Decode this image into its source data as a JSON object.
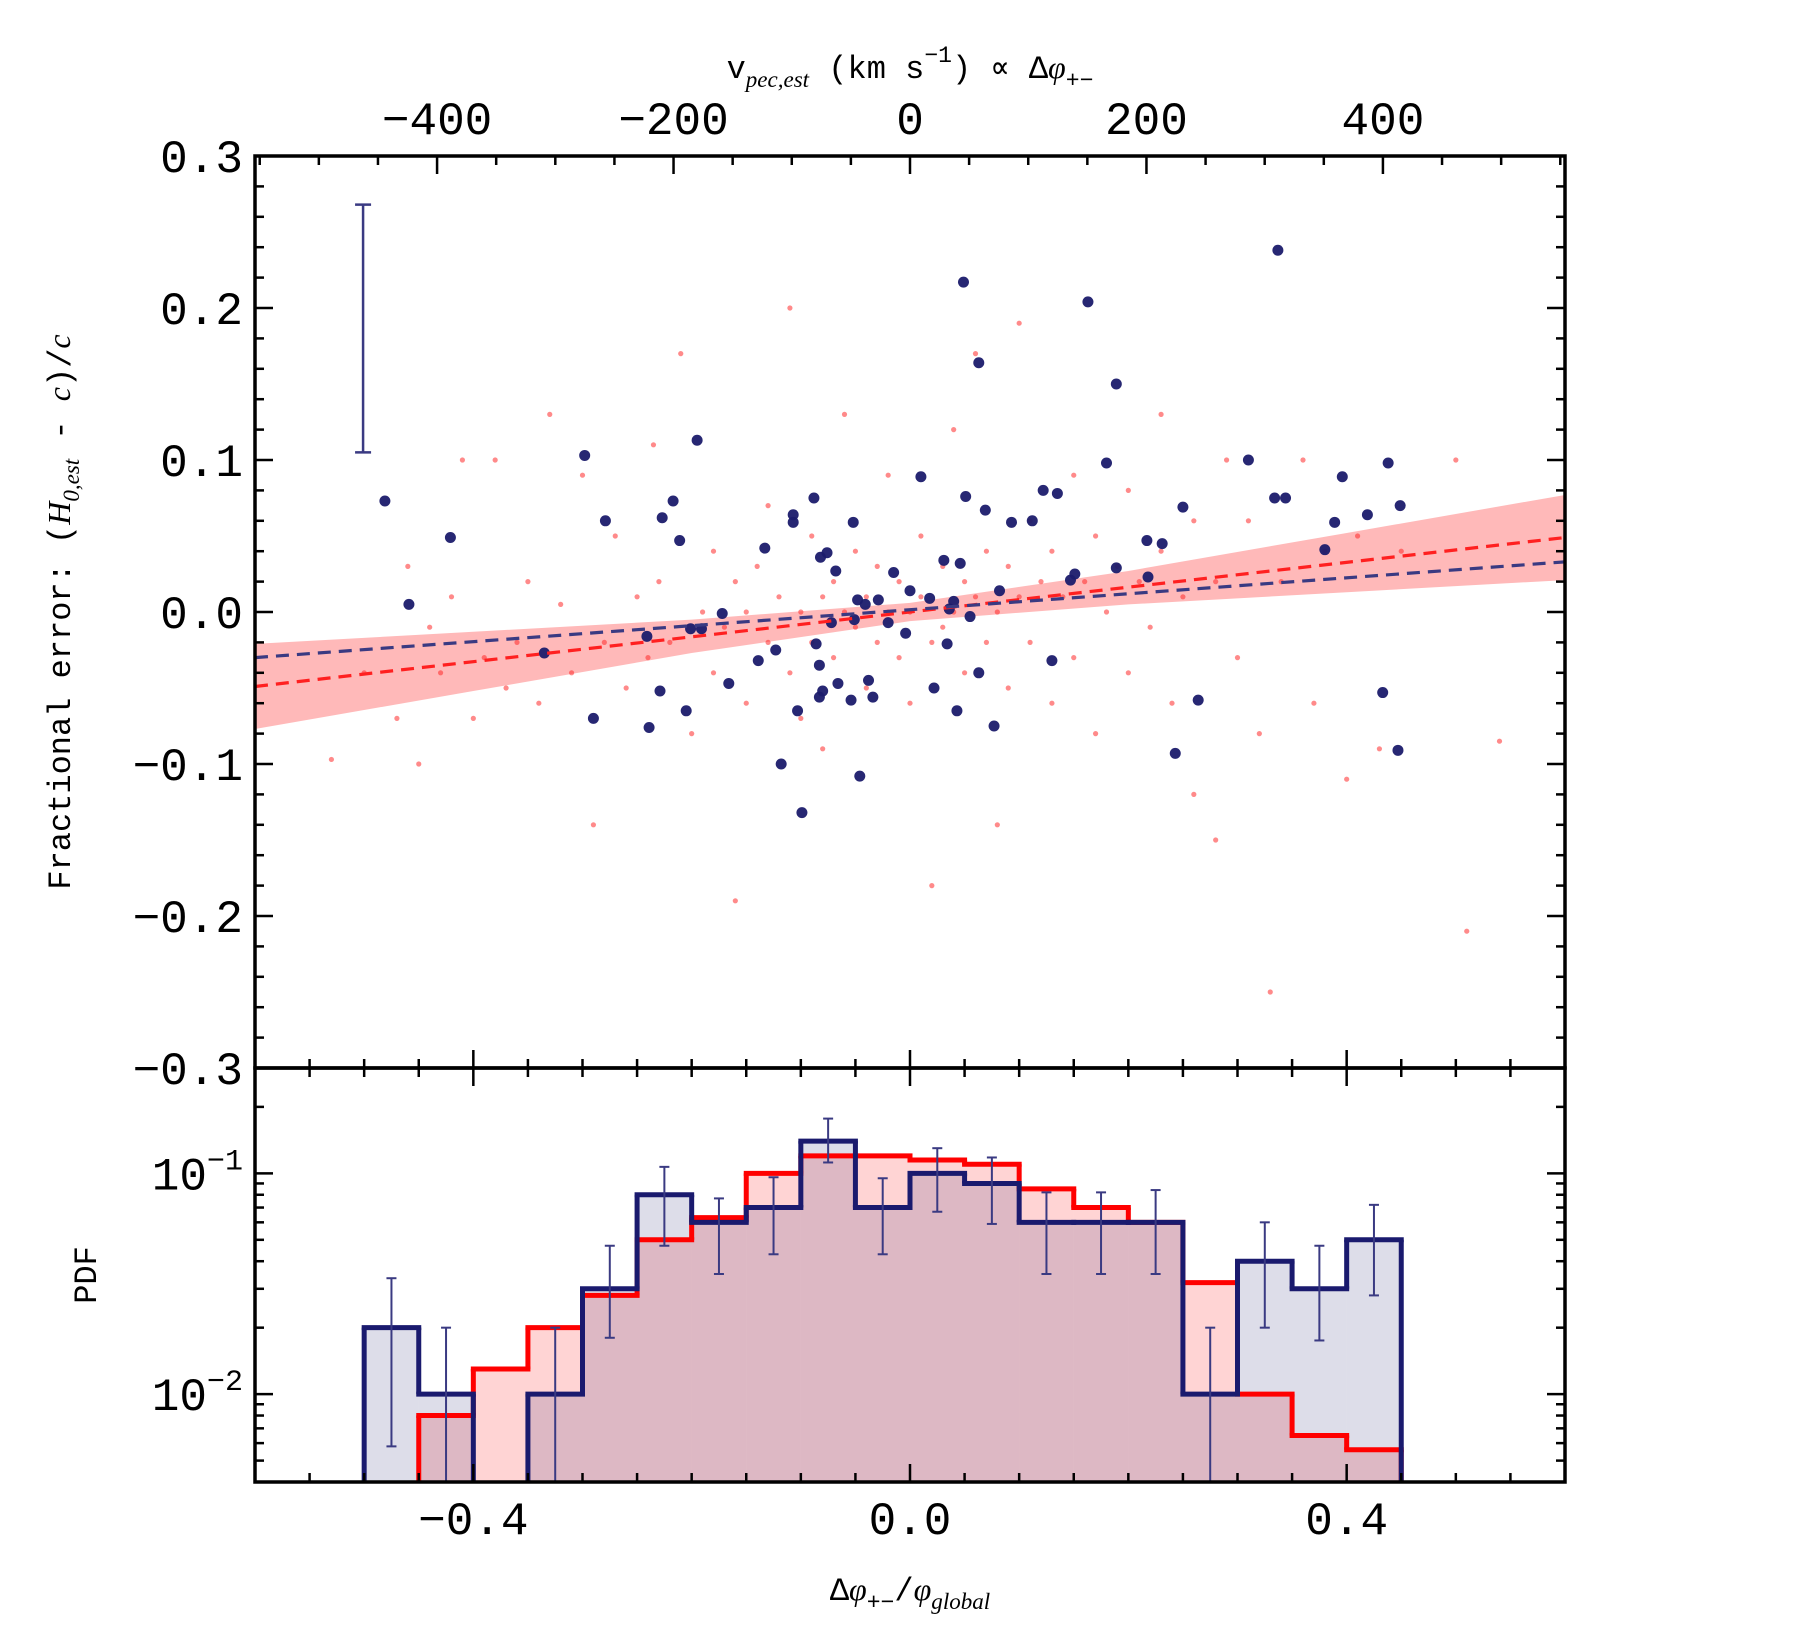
{
  "chart_data": [
    {
      "type": "scatter",
      "xlim": [
        -0.6,
        0.6
      ],
      "ylim": [
        -0.3,
        0.3
      ],
      "yticks": [
        {
          "value": -0.3,
          "label": "−0.3"
        },
        {
          "value": -0.2,
          "label": "−0.2"
        },
        {
          "value": -0.1,
          "label": "−0.1"
        },
        {
          "value": 0,
          "label": "0.0"
        },
        0.1,
        0.2,
        0.3
      ],
      "x2lim": [
        -554,
        554
      ],
      "x2ticks": [
        {
          "value": -400,
          "label": "−400"
        },
        {
          "value": -200,
          "label": "−200"
        },
        0,
        200,
        400
      ],
      "x2label": [
        {
          "text": "v"
        },
        {
          "text": "pec,est",
          "sub": true,
          "italic": true
        },
        {
          "text": " (km s"
        },
        {
          "text": "−1",
          "sup": true
        },
        {
          "text": ") ∝ Δ"
        },
        {
          "text": "φ",
          "italic": true
        },
        {
          "text": "+−",
          "sub": true
        }
      ],
      "ylabel": [
        {
          "text": "Fractional error: ("
        },
        {
          "text": "H",
          "italic": true
        },
        {
          "text": "0,est",
          "sub": true,
          "italic": true
        },
        {
          "text": " - "
        },
        {
          "text": "c",
          "italic": true
        },
        {
          "text": ")/"
        },
        {
          "text": "c",
          "italic": true
        }
      ],
      "band": {
        "color": "#ff8080",
        "opacity": 0.55,
        "x": [
          -0.6,
          -0.4,
          -0.2,
          0,
          0.2,
          0.4,
          0.6
        ],
        "low": [
          -0.077,
          -0.052,
          -0.027,
          -0.006,
          0.005,
          0.013,
          0.021
        ],
        "high": [
          -0.021,
          -0.013,
          -0.005,
          0.006,
          0.027,
          0.052,
          0.077
        ]
      },
      "series": [
        {
          "color": "#ff2a2a",
          "radius": 2.6,
          "opacity": 0.55,
          "x": [
            -0.53,
            -0.5,
            -0.47,
            -0.46,
            -0.45,
            -0.44,
            -0.43,
            -0.42,
            -0.41,
            -0.4,
            -0.39,
            -0.38,
            -0.37,
            -0.36,
            -0.35,
            -0.34,
            -0.33,
            -0.32,
            -0.31,
            -0.3,
            -0.29,
            -0.28,
            -0.27,
            -0.26,
            -0.25,
            -0.24,
            -0.235,
            -0.23,
            -0.22,
            -0.21,
            -0.2,
            -0.19,
            -0.18,
            -0.18,
            -0.17,
            -0.16,
            -0.16,
            -0.15,
            -0.15,
            -0.14,
            -0.13,
            -0.13,
            -0.12,
            -0.11,
            -0.11,
            -0.1,
            -0.1,
            -0.09,
            -0.09,
            -0.08,
            -0.08,
            -0.07,
            -0.07,
            -0.06,
            -0.06,
            -0.05,
            -0.05,
            -0.04,
            -0.04,
            -0.03,
            -0.03,
            -0.02,
            -0.02,
            -0.01,
            -0.01,
            0,
            0,
            0.01,
            0.01,
            0.02,
            0.02,
            0.03,
            0.03,
            0.04,
            0.04,
            0.05,
            0.05,
            0.06,
            0.06,
            0.07,
            0.07,
            0.08,
            0.08,
            0.09,
            0.09,
            0.1,
            0.1,
            0.11,
            0.11,
            0.12,
            0.13,
            0.13,
            0.14,
            0.15,
            0.15,
            0.16,
            0.17,
            0.17,
            0.18,
            0.19,
            0.2,
            0.2,
            0.21,
            0.22,
            0.23,
            0.23,
            0.24,
            0.25,
            0.26,
            0.26,
            0.28,
            0.28,
            0.29,
            0.3,
            0.31,
            0.32,
            0.33,
            0.34,
            0.36,
            0.37,
            0.38,
            0.4,
            0.41,
            0.43,
            0.45,
            0.5,
            0.51,
            0.54
          ],
          "values": [
            -0.097,
            -0.04,
            -0.07,
            0.03,
            -0.1,
            -0.01,
            -0.04,
            0.01,
            0.1,
            -0.07,
            -0.03,
            0.1,
            -0.05,
            -0.02,
            0.02,
            -0.06,
            0.13,
            0.005,
            -0.04,
            0.09,
            -0.14,
            -0.02,
            0.05,
            -0.05,
            0.01,
            -0.03,
            0.11,
            0.02,
            -0.02,
            0.17,
            -0.08,
            0,
            -0.04,
            0.04,
            -0.01,
            0.02,
            -0.19,
            -0.06,
            0,
            0.03,
            -0.02,
            0.07,
            0.01,
            -0.04,
            0.2,
            0,
            -0.07,
            0.05,
            -0.02,
            0.01,
            -0.09,
            0.02,
            -0.03,
            0,
            0.13,
            -0.01,
            0.04,
            0.01,
            -0.05,
            -0.02,
            0.03,
            0,
            0.09,
            -0.03,
            0.02,
            0,
            -0.06,
            0.01,
            0.05,
            -0.02,
            -0.18,
            0.03,
            -0.01,
            0,
            0.12,
            -0.04,
            0.02,
            0.01,
            0.17,
            -0.02,
            0.04,
            0,
            -0.14,
            0.03,
            -0.05,
            0.01,
            0.19,
            0.06,
            -0.02,
            0.02,
            -0.06,
            0.04,
            0.01,
            0.09,
            -0.03,
            0.02,
            0.05,
            -0.08,
            0,
            0.03,
            -0.04,
            0.08,
            0.02,
            -0.01,
            0.13,
            0.04,
            -0.06,
            0.01,
            0.06,
            -0.12,
            0.02,
            -0.15,
            0.1,
            -0.03,
            0.06,
            -0.08,
            -0.25,
            0.02,
            0.1,
            -0.06,
            0.04,
            -0.11,
            0.05,
            -0.09,
            0.04,
            0.1,
            -0.21,
            -0.085
          ]
        },
        {
          "color": "#1b1b6b",
          "radius": 5.5,
          "opacity": 0.95,
          "x": [
            -0.481,
            -0.459,
            -0.421,
            -0.335,
            -0.298,
            -0.29,
            -0.279,
            -0.239,
            -0.241,
            -0.229,
            -0.227,
            -0.217,
            -0.211,
            -0.205,
            -0.201,
            -0.195,
            -0.191,
            -0.172,
            -0.166,
            -0.139,
            -0.133,
            -0.123,
            -0.118,
            -0.107,
            -0.107,
            -0.103,
            -0.099,
            -0.088,
            -0.086,
            -0.083,
            -0.083,
            -0.08,
            -0.082,
            -0.076,
            -0.068,
            -0.072,
            -0.066,
            -0.054,
            -0.052,
            -0.051,
            -0.048,
            -0.046,
            -0.041,
            -0.038,
            -0.034,
            -0.029,
            -0.02,
            -0.015,
            -0.004,
            0,
            0.01,
            0.018,
            0.022,
            0.031,
            0.034,
            0.036,
            0.04,
            0.043,
            0.046,
            0.049,
            0.051,
            0.055,
            0.063,
            0.063,
            0.069,
            0.077,
            0.082,
            0.093,
            0.112,
            0.122,
            0.13,
            0.135,
            0.147,
            0.151,
            0.163,
            0.18,
            0.189,
            0.189,
            0.217,
            0.218,
            0.231,
            0.243,
            0.25,
            0.264,
            0.31,
            0.337,
            0.334,
            0.344,
            0.38,
            0.389,
            0.396,
            0.419,
            0.433,
            0.438,
            0.447,
            0.449
          ],
          "values": [
            0.073,
            0.005,
            0.049,
            -0.027,
            0.103,
            -0.07,
            0.06,
            -0.076,
            -0.016,
            -0.052,
            0.062,
            0.073,
            0.047,
            -0.065,
            -0.011,
            0.113,
            -0.011,
            -0.001,
            -0.047,
            -0.032,
            0.042,
            -0.025,
            -0.1,
            0.064,
            0.059,
            -0.065,
            -0.132,
            0.075,
            -0.021,
            -0.035,
            -0.056,
            -0.052,
            0.036,
            0.039,
            0.027,
            -0.007,
            -0.047,
            -0.058,
            0.059,
            -0.005,
            0.008,
            -0.108,
            0.005,
            -0.045,
            -0.056,
            0.008,
            -0.007,
            0.026,
            -0.014,
            0.014,
            0.089,
            0.009,
            -0.05,
            0.034,
            -0.021,
            0.002,
            0.007,
            -0.065,
            0.032,
            0.217,
            0.076,
            -0.003,
            0.164,
            -0.04,
            0.067,
            -0.075,
            0.014,
            0.059,
            0.06,
            0.08,
            -0.032,
            0.078,
            0.021,
            0.025,
            0.204,
            0.098,
            0.15,
            0.029,
            0.047,
            0.023,
            0.045,
            -0.093,
            0.069,
            -0.058,
            0.1,
            0.238,
            0.075,
            0.075,
            0.041,
            0.059,
            0.089,
            0.064,
            -0.053,
            0.098,
            -0.091,
            0.07
          ]
        }
      ],
      "fits": [
        {
          "color": "#ff2020",
          "x": [
            -0.6,
            0.6
          ],
          "values": [
            -0.049,
            0.049
          ]
        },
        {
          "color": "#3a3a82",
          "x": [
            -0.6,
            0.6
          ],
          "values": [
            -0.03,
            0.033
          ]
        }
      ],
      "error_bar": {
        "color": "#3a3a82",
        "x": -0.501,
        "low": 0.105,
        "high": 0.268
      }
    },
    {
      "type": "histogram",
      "xlim": [
        -0.6,
        0.6
      ],
      "xticks": [
        {
          "value": -0.4,
          "label": "−0.4"
        },
        {
          "value": 0,
          "label": "0.0"
        },
        0.4
      ],
      "xlabel": [
        {
          "text": "Δ"
        },
        {
          "text": "φ",
          "italic": true
        },
        {
          "text": "+−",
          "sub": true
        },
        {
          "text": "/"
        },
        {
          "text": "φ",
          "italic": true
        },
        {
          "text": "global",
          "sub": true,
          "italic": true
        }
      ],
      "ylabel": "PDF",
      "log_y": true,
      "ylim": [
        0.004,
        0.3
      ],
      "yticks": [
        {
          "value": 0.01,
          "label": "10",
          "exponent": "−2"
        },
        {
          "value": 0.1,
          "label": "10",
          "exponent": "−1"
        }
      ],
      "bins": [
        -0.5,
        -0.45,
        -0.4,
        -0.35,
        -0.3,
        -0.25,
        -0.2,
        -0.15,
        -0.1,
        -0.05,
        0,
        0.05,
        0.1,
        0.15,
        0.2,
        0.25,
        0.3,
        0.35,
        0.4,
        0.45
      ],
      "series": [
        {
          "color": "#ff0000",
          "fill": "#ff0000",
          "fill_opacity": 0.17,
          "values": [
            0,
            0.008,
            0.013,
            0.02,
            0.028,
            0.05,
            0.063,
            0.1,
            0.12,
            0.12,
            0.115,
            0.11,
            0.085,
            0.07,
            0.06,
            0.032,
            0.01,
            0.0065,
            0.0056
          ]
        },
        {
          "color": "#1a1a6e",
          "fill": "#1a1a6e",
          "fill_opacity": 0.15,
          "values": [
            0.02,
            0.01,
            0,
            0.01,
            0.03,
            0.08,
            0.06,
            0.07,
            0.14,
            0.07,
            0.1,
            0.09,
            0.06,
            0.06,
            0.06,
            0.01,
            0.04,
            0.03,
            0.05
          ],
          "err_low": [
            0.0058,
            0,
            null,
            0,
            0.018,
            0.047,
            0.035,
            0.043,
            0.112,
            0.043,
            0.067,
            0.059,
            0.035,
            0.035,
            0.035,
            0,
            0.02,
            0.0175,
            0.028
          ],
          "err_high": [
            0.0335,
            0.02,
            null,
            0.02,
            0.047,
            0.107,
            0.077,
            0.096,
            0.177,
            0.095,
            0.13,
            0.118,
            0.082,
            0.082,
            0.084,
            0.02,
            0.06,
            0.047,
            0.072
          ]
        }
      ]
    }
  ]
}
